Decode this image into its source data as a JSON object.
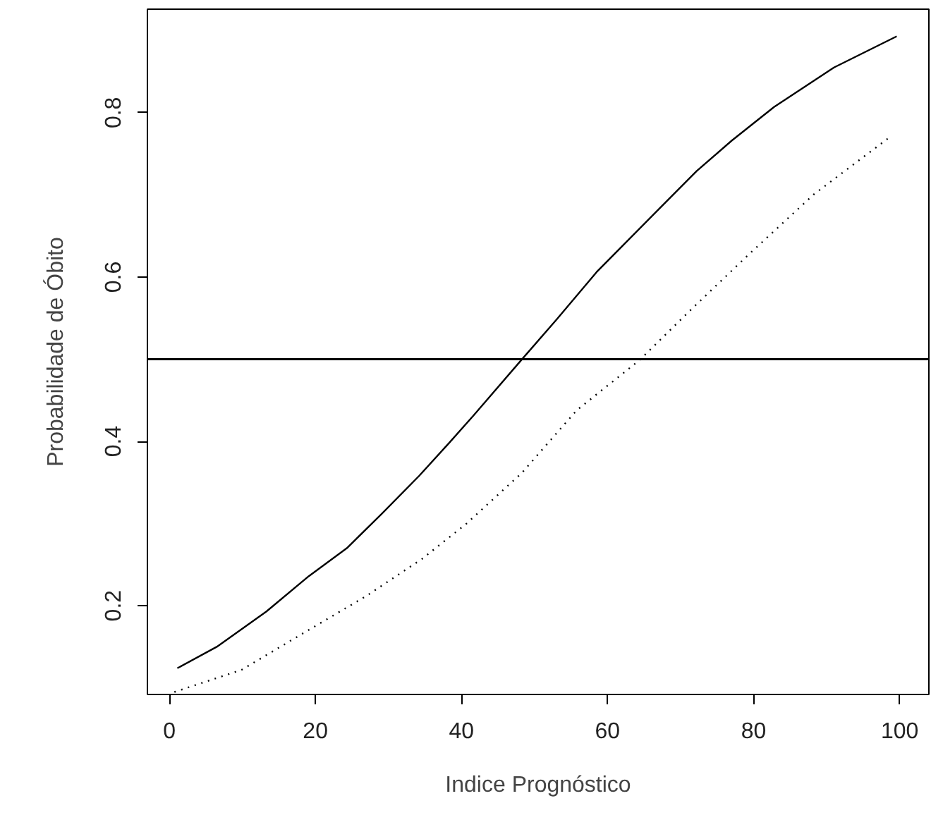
{
  "chart_data": {
    "type": "line",
    "xlabel": "Indice Prognóstico",
    "ylabel": "Probabilidade de Óbito",
    "series": [
      {
        "color": "#000000",
        "line_style": "solid",
        "x": [
          1.1,
          6.5,
          13.3,
          19.1,
          24.3,
          29.1,
          34.2,
          38.3,
          41.7,
          48.2,
          53.0,
          58.5,
          66.4,
          72.2,
          77.0,
          82.8,
          91.0,
          99.6
        ],
        "values": [
          0.124,
          0.15,
          0.193,
          0.236,
          0.27,
          0.312,
          0.358,
          0.398,
          0.432,
          0.499,
          0.548,
          0.606,
          0.677,
          0.729,
          0.766,
          0.807,
          0.855,
          0.893
        ]
      },
      {
        "color": "#000000",
        "line_style": "dotted",
        "x": [
          0.7,
          9.9,
          18.8,
          27.0,
          34.6,
          40.7,
          48.2,
          55.8,
          64.4,
          71.5,
          79.4,
          88.3,
          98.9
        ],
        "values": [
          0.095,
          0.122,
          0.169,
          0.212,
          0.257,
          0.3,
          0.361,
          0.438,
          0.499,
          0.561,
          0.628,
          0.701,
          0.772
        ]
      }
    ],
    "ref_lines": [
      {
        "axis": "y",
        "value": 0.5,
        "color": "#000000",
        "line_style": "solid"
      }
    ],
    "xlim": [
      -3,
      104
    ],
    "ylim": [
      0.092,
      0.926
    ],
    "xticks": [
      0,
      20,
      40,
      60,
      80,
      100
    ],
    "yticks": [
      0.2,
      0.4,
      0.6,
      0.8
    ],
    "grid": false,
    "marker": "none"
  }
}
